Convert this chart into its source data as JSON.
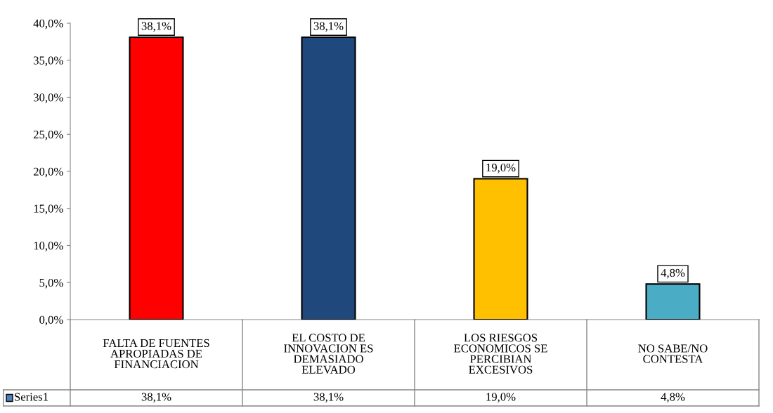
{
  "chart_data": {
    "type": "bar",
    "categories": [
      "FALTA DE FUENTES\nAPROPIADAS DE\nFINANCIACION",
      "EL COSTO DE\nINNOVACION ES\nDEMASIADO\nELEVADO",
      "LOS RIESGOS\nECONOMICOS SE\nPERCIBIAN\nEXCESIVOS",
      "NO SABE/NO\nCONTESTA"
    ],
    "series": [
      {
        "name": "Series1",
        "color": "#4f81bd",
        "colors": [
          "#ff0000",
          "#1f497d",
          "#ffc000",
          "#4bacc6"
        ],
        "values": [
          38.1,
          38.1,
          19.0,
          4.8
        ],
        "value_labels": [
          "38,1%",
          "38,1%",
          "19,0%",
          "4,8%"
        ]
      }
    ],
    "ylim": [
      0,
      40
    ],
    "yticks": [
      {
        "value": 0,
        "label": "0,0%"
      },
      {
        "value": 5,
        "label": "5,0%"
      },
      {
        "value": 10,
        "label": "10,0%"
      },
      {
        "value": 15,
        "label": "15,0%"
      },
      {
        "value": 20,
        "label": "20,0%"
      },
      {
        "value": 25,
        "label": "25,0%"
      },
      {
        "value": 30,
        "label": "30,0%"
      },
      {
        "value": 35,
        "label": "35,0%"
      },
      {
        "value": 40,
        "label": "40,0%"
      }
    ],
    "data_labels": true,
    "grid": false,
    "legend": false
  }
}
